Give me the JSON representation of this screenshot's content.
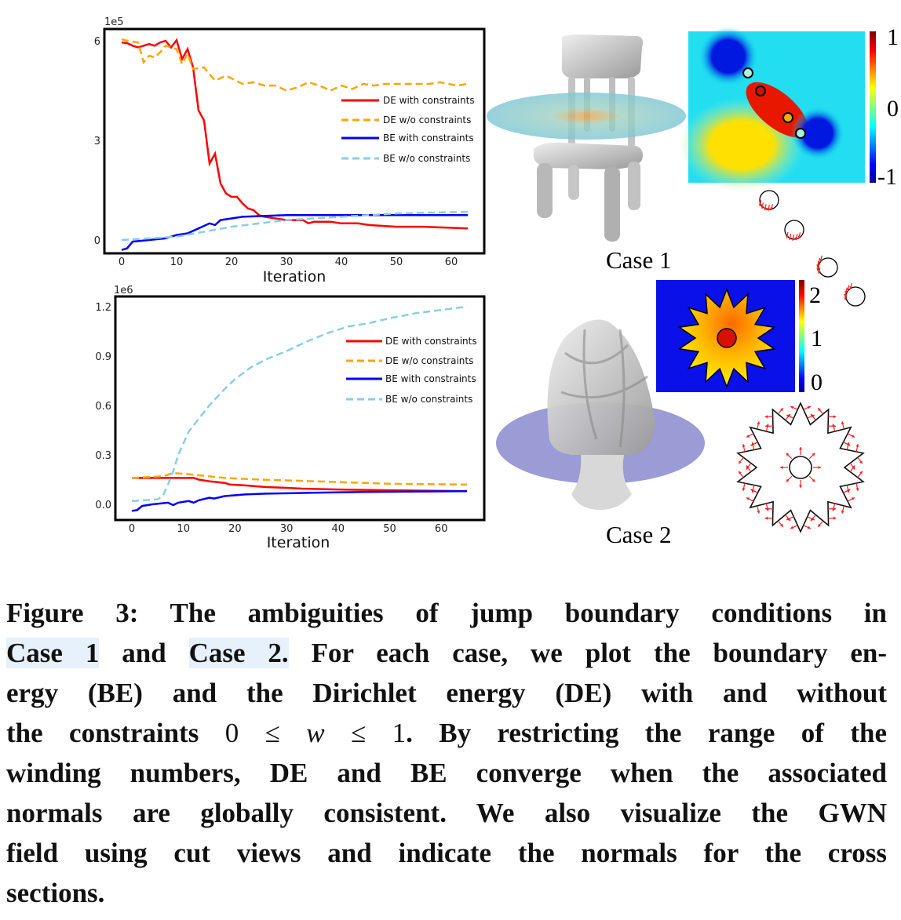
{
  "chart_data": [
    {
      "type": "line",
      "title": "",
      "xlabel": "Iteration",
      "ylabel": "",
      "y_scale_label": "1e5",
      "xlim": [
        -3,
        66
      ],
      "ylim": [
        -0.6,
        6.7
      ],
      "xticks": [
        0,
        10,
        20,
        30,
        40,
        50,
        60
      ],
      "yticks": [
        0,
        3,
        6
      ],
      "ytick_labels": [
        "0",
        "3",
        "6"
      ],
      "legend_position": "center-right",
      "series": [
        {
          "name": "DE with constraints",
          "color": "#ff0000",
          "dash": false,
          "x": [
            0,
            1,
            2,
            3,
            4,
            5,
            6,
            7,
            8,
            9,
            10,
            11,
            12,
            13,
            14,
            15,
            16,
            17,
            18,
            19,
            20,
            21,
            22,
            23,
            24,
            25,
            26,
            28,
            30,
            33,
            34,
            35,
            38,
            40,
            43,
            45,
            50,
            55,
            63
          ],
          "y": [
            5.95,
            5.93,
            5.85,
            5.8,
            5.85,
            5.9,
            5.85,
            5.95,
            6.0,
            5.8,
            6.02,
            5.45,
            5.75,
            5.2,
            3.9,
            3.6,
            2.3,
            2.6,
            1.7,
            1.4,
            1.3,
            1.3,
            1.1,
            0.95,
            0.9,
            0.75,
            0.7,
            0.65,
            0.6,
            0.6,
            0.5,
            0.55,
            0.55,
            0.5,
            0.5,
            0.45,
            0.4,
            0.4,
            0.35
          ]
        },
        {
          "name": "DE w/o constraints",
          "color": "#ffa500",
          "dash": true,
          "x": [
            0,
            1,
            3,
            4,
            5,
            6,
            7,
            8,
            10,
            11,
            12,
            13,
            15,
            17,
            19,
            22,
            24,
            26,
            28,
            30,
            32,
            34,
            36,
            38,
            40,
            42,
            44,
            46,
            48,
            52,
            56,
            58,
            61,
            63
          ],
          "y": [
            6.05,
            6.0,
            5.95,
            5.35,
            5.55,
            5.5,
            5.65,
            5.85,
            5.75,
            5.3,
            5.6,
            5.15,
            5.2,
            4.8,
            4.95,
            4.7,
            4.75,
            4.65,
            4.65,
            4.5,
            4.6,
            4.75,
            4.65,
            4.5,
            4.65,
            4.55,
            4.7,
            4.65,
            4.7,
            4.7,
            4.7,
            4.75,
            4.65,
            4.7
          ]
        },
        {
          "name": "BE with constraints",
          "color": "#0000ff",
          "dash": false,
          "x": [
            0,
            1,
            2,
            5,
            8,
            10,
            12,
            14,
            16,
            17,
            18,
            22,
            30,
            40,
            63
          ],
          "y": [
            -0.3,
            -0.25,
            -0.05,
            0,
            0.05,
            0.15,
            0.2,
            0.35,
            0.5,
            0.45,
            0.6,
            0.7,
            0.75,
            0.75,
            0.75
          ]
        },
        {
          "name": "BE w/o constraints",
          "color": "#87ceeb",
          "dash": true,
          "x": [
            0,
            10,
            20,
            30,
            40,
            50,
            63
          ],
          "y": [
            0,
            0.1,
            0.4,
            0.6,
            0.7,
            0.8,
            0.85
          ]
        }
      ]
    },
    {
      "type": "line",
      "title": "",
      "xlabel": "Iteration",
      "ylabel": "",
      "y_scale_label": "1e6",
      "xlim": [
        -3,
        68
      ],
      "ylim": [
        -0.08,
        1.26
      ],
      "xticks": [
        0,
        10,
        20,
        30,
        40,
        50,
        60
      ],
      "yticks": [
        0,
        0.3,
        0.6,
        0.9,
        1.2
      ],
      "ytick_labels": [
        "0.0",
        "0.3",
        "0.6",
        "0.9",
        "1.2"
      ],
      "legend_position": "center-right",
      "series": [
        {
          "name": "DE with constraints",
          "color": "#ff0000",
          "dash": false,
          "x": [
            0,
            12,
            13,
            15,
            18,
            19,
            22,
            26,
            30,
            33,
            40,
            50,
            65
          ],
          "y": [
            0.16,
            0.16,
            0.15,
            0.14,
            0.13,
            0.12,
            0.115,
            0.105,
            0.1,
            0.095,
            0.09,
            0.085,
            0.08
          ]
        },
        {
          "name": "DE w/o constraints",
          "color": "#ffa500",
          "dash": true,
          "x": [
            0,
            6,
            8,
            12,
            18,
            25,
            30,
            40,
            50,
            65
          ],
          "y": [
            0.16,
            0.17,
            0.19,
            0.18,
            0.16,
            0.15,
            0.145,
            0.135,
            0.125,
            0.12
          ]
        },
        {
          "name": "BE with constraints",
          "color": "#0000ff",
          "dash": false,
          "x": [
            0,
            1,
            2,
            4,
            7,
            8,
            9,
            11,
            12,
            13,
            15,
            16,
            18,
            22,
            26,
            35,
            45,
            65
          ],
          "y": [
            -0.04,
            -0.035,
            -0.01,
            0,
            0.01,
            -0.005,
            0.01,
            0.02,
            0.01,
            0.025,
            0.04,
            0.035,
            0.05,
            0.06,
            0.065,
            0.07,
            0.075,
            0.08
          ]
        },
        {
          "name": "BE w/o constraints",
          "color": "#87ceeb",
          "dash": true,
          "x": [
            0,
            5,
            6,
            7,
            8,
            9,
            10,
            11,
            13,
            15,
            18,
            20,
            23,
            26,
            30,
            34,
            38,
            42,
            46,
            50,
            55,
            60,
            65
          ],
          "y": [
            0.02,
            0.03,
            0.05,
            0.12,
            0.2,
            0.3,
            0.37,
            0.44,
            0.52,
            0.6,
            0.7,
            0.76,
            0.83,
            0.88,
            0.93,
            0.99,
            1.04,
            1.08,
            1.1,
            1.13,
            1.16,
            1.18,
            1.2
          ]
        }
      ]
    }
  ],
  "cases": {
    "case1_label": "Case 1",
    "case2_label": "Case 2",
    "case1_colorbar": [
      "1",
      "0",
      "-1"
    ],
    "case2_colorbar": [
      "2",
      "1",
      "0"
    ]
  },
  "caption": {
    "label": "Figure 3:",
    "l1": " The ambiguities of jump boundary conditions in",
    "case1": "Case 1",
    "and": " and ",
    "case2": "Case 2.",
    "l2": " For each case, we plot the boundary en-",
    "l3": "ergy (BE) and the Dirichlet energy (DE) with and without",
    "l4a": "the constraints ",
    "math_a": "0 ≤ ",
    "math_w": "w",
    "math_b": " ≤ 1",
    "l4b": ". By restricting the range of the",
    "l5": "winding numbers, DE and BE converge when the associated",
    "l6": "normals are globally consistent. We also visualize the GWN",
    "l7": "field using cut views and indicate the normals for the cross",
    "l8": "sections."
  }
}
